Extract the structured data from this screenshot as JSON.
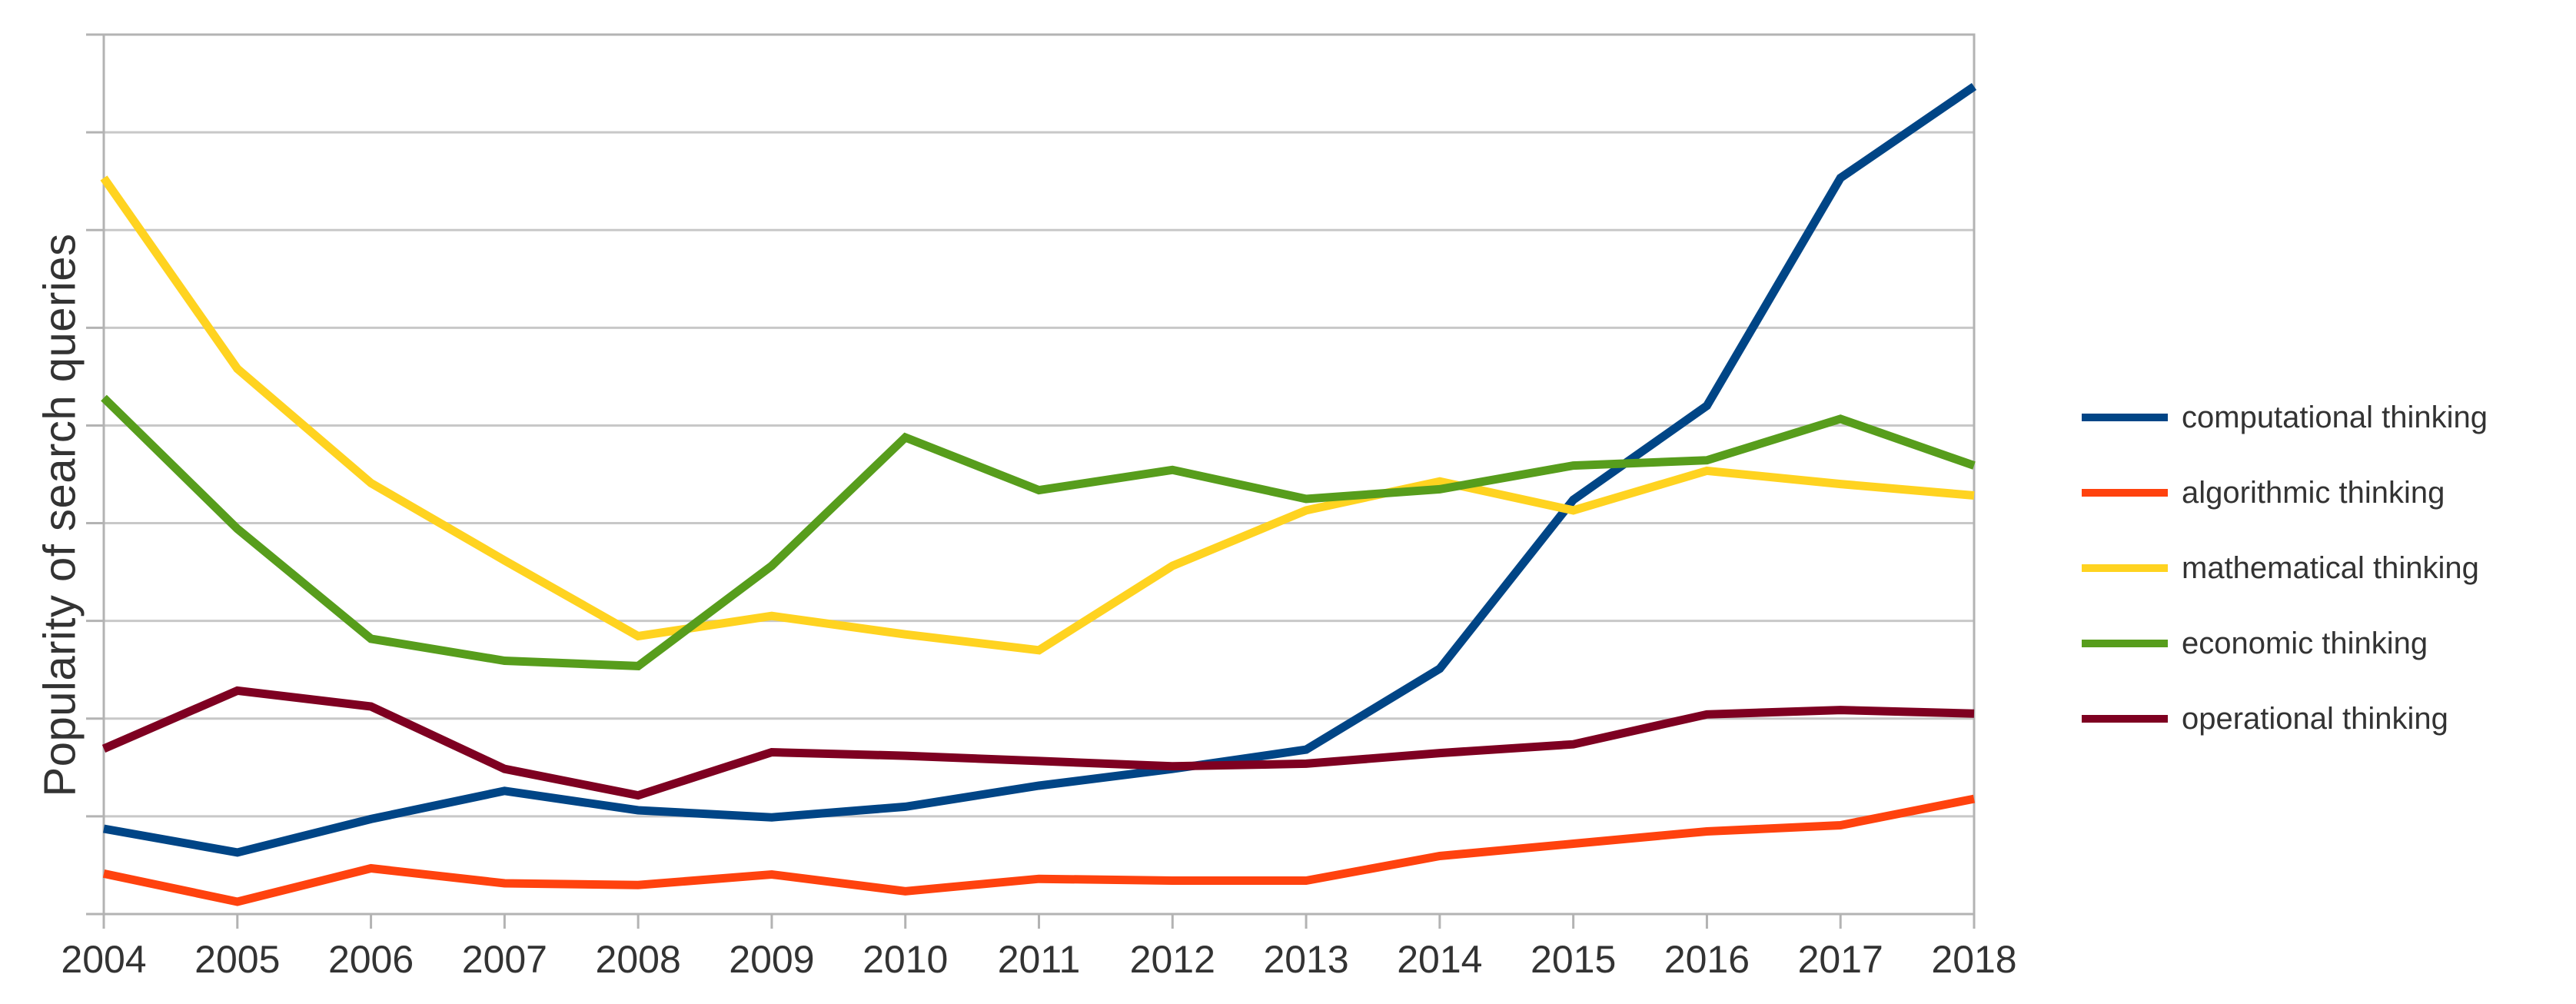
{
  "chart_data": {
    "type": "line",
    "title": "",
    "ylabel": "Popularity of search queries",
    "xlabel": "",
    "x": [
      2004,
      2005,
      2006,
      2007,
      2008,
      2009,
      2010,
      2011,
      2012,
      2013,
      2014,
      2015,
      2016,
      2017,
      2018
    ],
    "ylim": [
      0,
      100
    ],
    "y_gridline_intervals": 9,
    "y_tick_labels_shown": false,
    "grid": true,
    "legend_position": "right",
    "series": [
      {
        "name": "computational thinking",
        "color": "#004586",
        "values": [
          9.7,
          7.0,
          10.8,
          14.0,
          11.8,
          11.0,
          12.2,
          14.6,
          16.5,
          18.7,
          27.9,
          47.1,
          57.8,
          83.7,
          94.1
        ]
      },
      {
        "name": "algorithmic thinking",
        "color": "#ff420e",
        "values": [
          4.6,
          1.4,
          5.2,
          3.5,
          3.3,
          4.5,
          2.6,
          4.0,
          3.8,
          3.8,
          6.6,
          8.0,
          9.4,
          10.1,
          13.1
        ]
      },
      {
        "name": "mathematical thinking",
        "color": "#ffd320",
        "values": [
          83.7,
          62.0,
          49.0,
          40.2,
          31.6,
          33.9,
          31.8,
          30.0,
          39.6,
          45.9,
          49.2,
          45.9,
          50.4,
          48.9,
          47.6
        ]
      },
      {
        "name": "economic thinking",
        "color": "#579d1c",
        "values": [
          58.7,
          43.8,
          31.3,
          28.8,
          28.2,
          39.6,
          54.2,
          48.2,
          50.5,
          47.2,
          48.3,
          51.0,
          51.6,
          56.3,
          51.0
        ]
      },
      {
        "name": "operational thinking",
        "color": "#7e0021",
        "values": [
          18.8,
          25.4,
          23.6,
          16.5,
          13.5,
          18.4,
          18.0,
          17.4,
          16.8,
          17.1,
          18.3,
          19.3,
          22.7,
          23.2,
          22.8
        ]
      }
    ]
  },
  "colors": {
    "background": "#ffffff",
    "gridline": "#c8c8c8",
    "axis": "#b3b3b3",
    "text": "#333333"
  }
}
